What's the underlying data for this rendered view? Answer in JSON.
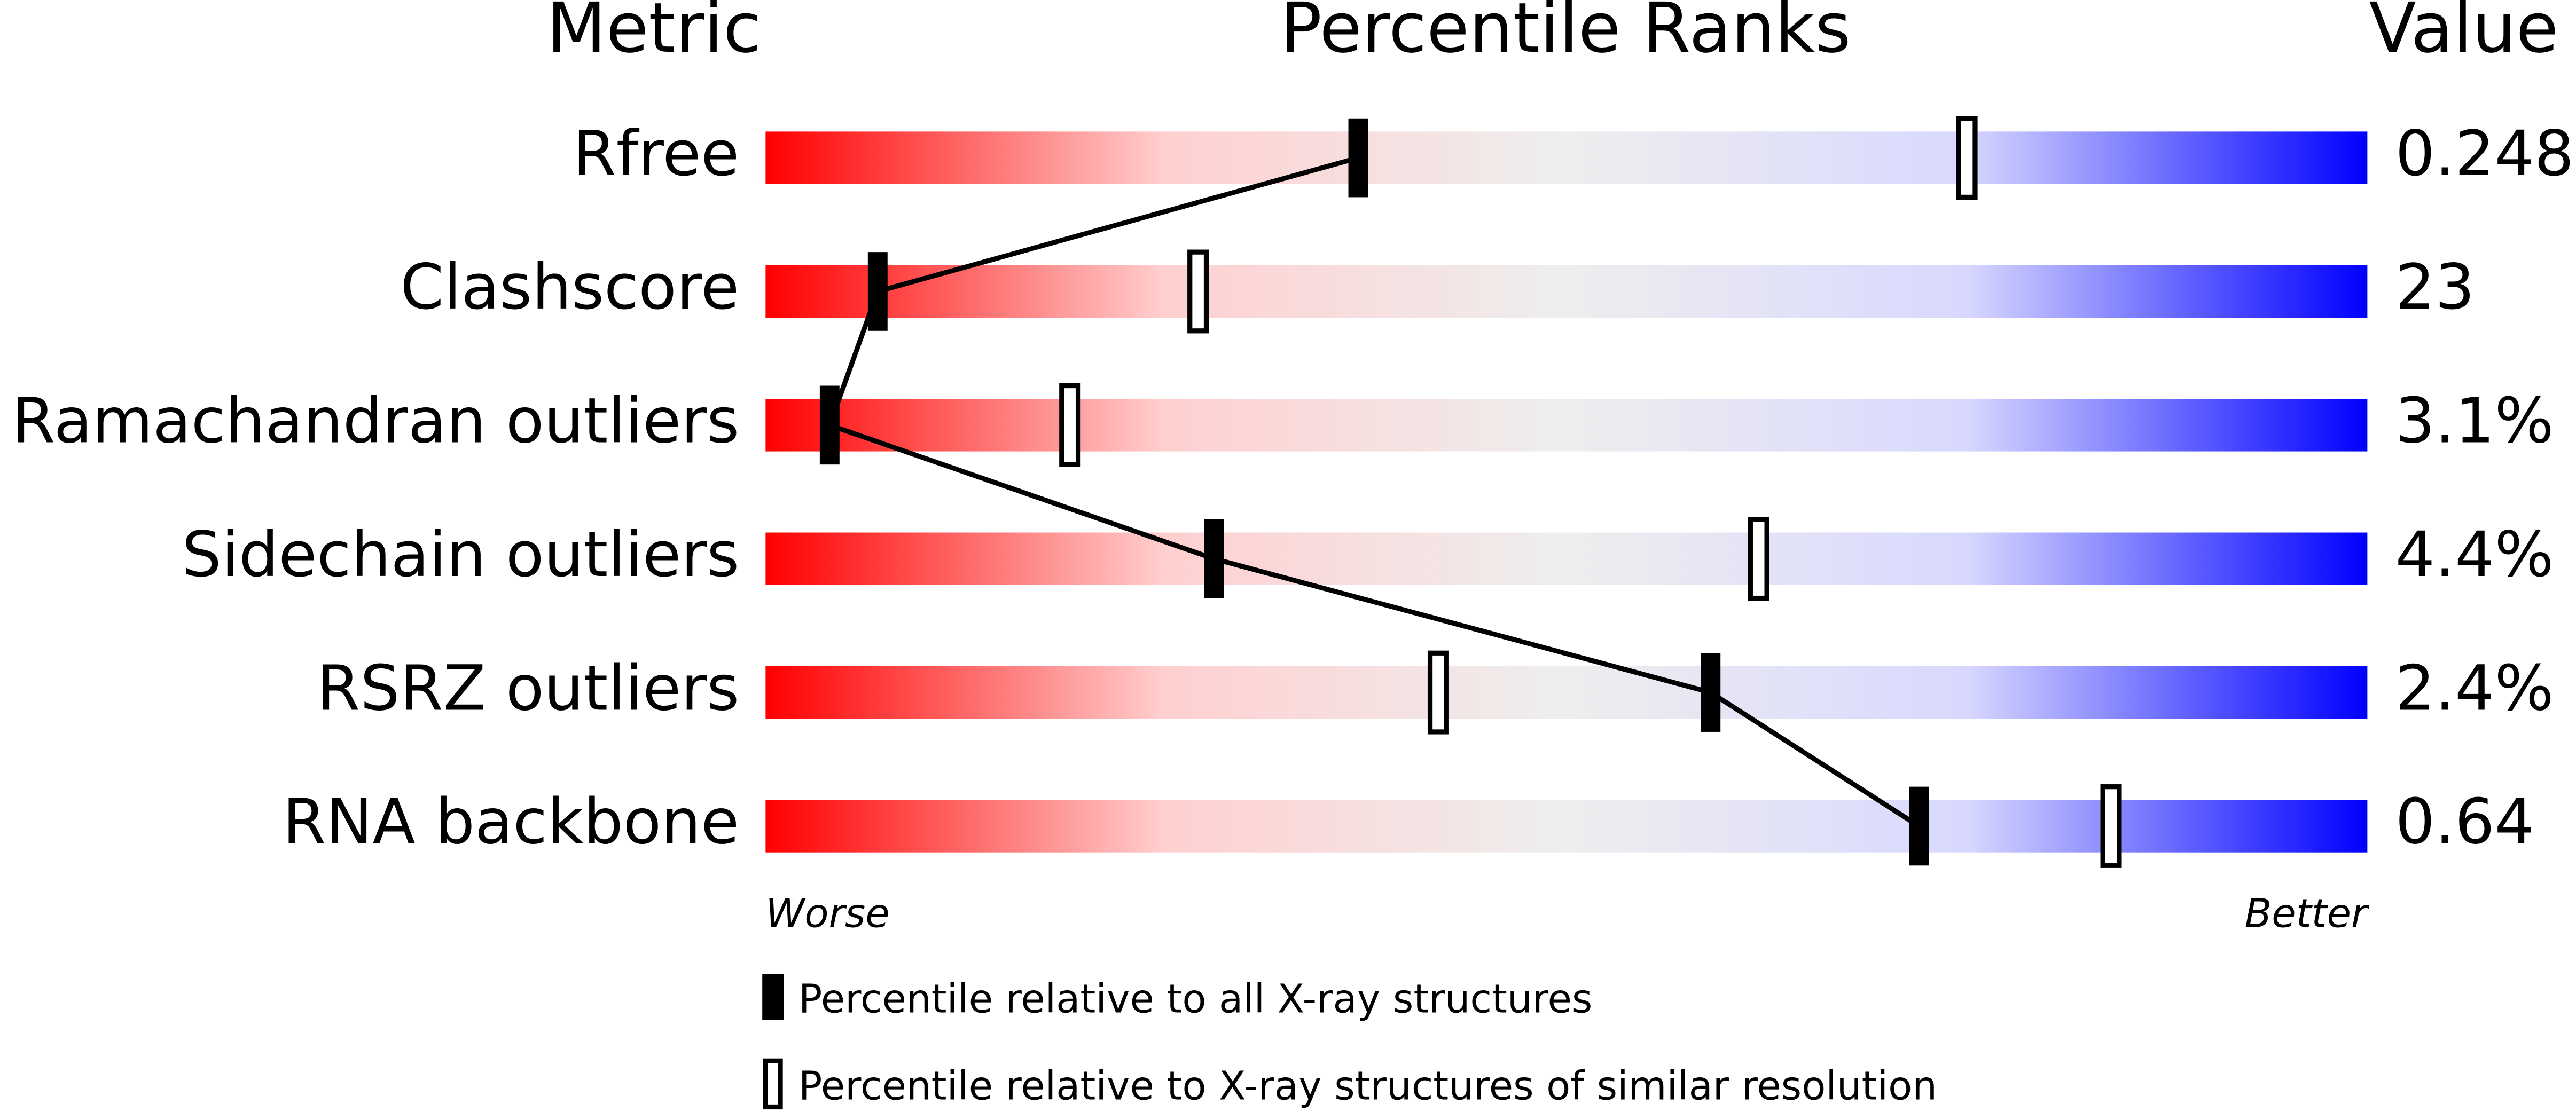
{
  "chart_data": {
    "type": "percentile",
    "headers": [
      "Metric",
      "Percentile Ranks",
      "Value"
    ],
    "categories": [
      "Rfree",
      "Clashscore",
      "Ramachandran outliers",
      "Sidechain outliers",
      "RSRZ outliers",
      "RNA backbone"
    ],
    "metric_values": [
      "0.248",
      "23",
      "3.1%",
      "4.4%",
      "2.4%",
      "0.64"
    ],
    "xlim": [
      0,
      100
    ],
    "scale_labels": [
      "Worse",
      "Better"
    ],
    "gradient": [
      "#ff0000",
      "#ffd0d0",
      "#eeeeee",
      "#d8d8ff",
      "#0000ff"
    ],
    "series": [
      {
        "name": "Percentile relative to all X-ray structures",
        "color": "#000000",
        "filled": true,
        "connected": true,
        "values": [
          37,
          7,
          4,
          28,
          59,
          72
        ]
      },
      {
        "name": "Percentile relative to X-ray structures of similar resolution",
        "color": "#000000",
        "filled": false,
        "connected": false,
        "values": [
          75,
          27,
          19,
          62,
          42,
          84
        ]
      }
    ]
  }
}
